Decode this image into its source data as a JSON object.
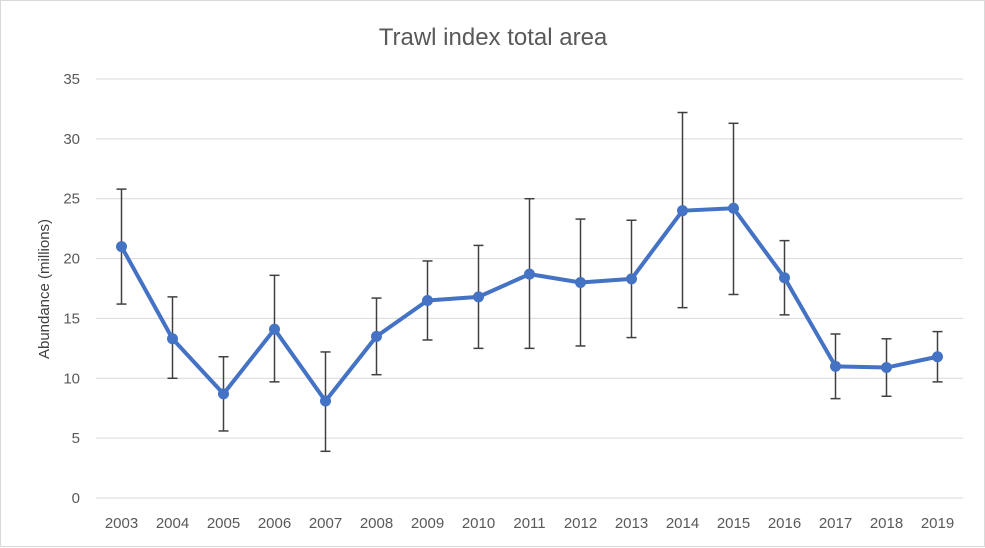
{
  "chart_data": {
    "type": "line",
    "title": "Trawl index total area",
    "xlabel": "",
    "ylabel": "Abundance (millions)",
    "ylim": [
      0,
      35
    ],
    "yticks": [
      0,
      5,
      10,
      15,
      20,
      25,
      30,
      35
    ],
    "grid": "horizontal",
    "legend": "none",
    "colors": {
      "series": "#4472c4",
      "error_bar": "#404040",
      "grid": "#d9d9d9"
    },
    "categories": [
      "2003",
      "2004",
      "2005",
      "2006",
      "2007",
      "2008",
      "2009",
      "2010",
      "2011",
      "2012",
      "2013",
      "2014",
      "2015",
      "2016",
      "2017",
      "2018",
      "2019"
    ],
    "series": [
      {
        "values": [
          21.0,
          13.3,
          8.7,
          14.1,
          8.1,
          13.5,
          16.5,
          16.8,
          18.7,
          18.0,
          18.3,
          24.0,
          24.2,
          18.4,
          11.0,
          10.9,
          11.8
        ],
        "error_upper": [
          25.8,
          16.8,
          11.8,
          18.6,
          12.2,
          16.7,
          19.8,
          21.1,
          25.0,
          23.3,
          23.2,
          32.2,
          31.3,
          21.5,
          13.7,
          13.3,
          13.9
        ],
        "error_lower": [
          16.2,
          10.0,
          5.6,
          9.7,
          3.9,
          10.3,
          13.2,
          12.5,
          12.5,
          12.7,
          13.4,
          15.9,
          17.0,
          15.3,
          8.3,
          8.5,
          9.7
        ]
      }
    ]
  }
}
